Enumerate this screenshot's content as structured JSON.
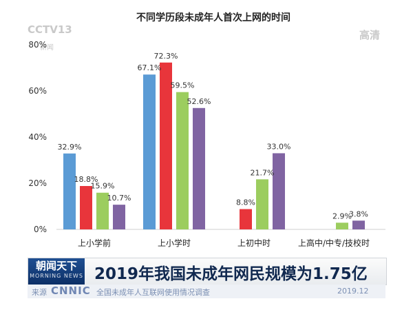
{
  "chart_data": {
    "type": "bar",
    "title": "不同学历段未成年人首次上网的时间",
    "categories": [
      "上小学前",
      "上小学时",
      "上初中时",
      "上高中/中专/技校时"
    ],
    "series": [
      {
        "color": "#5b9bd5",
        "values": [
          32.9,
          67.1,
          null,
          null
        ]
      },
      {
        "color": "#e8353b",
        "values": [
          18.8,
          72.3,
          8.8,
          null
        ]
      },
      {
        "color": "#9ccd5f",
        "values": [
          15.9,
          59.5,
          21.7,
          2.9
        ]
      },
      {
        "color": "#8064a2",
        "values": [
          10.7,
          52.6,
          33.0,
          3.8
        ]
      }
    ],
    "value_labels": [
      [
        "32.9%",
        "67.1%",
        "",
        ""
      ],
      [
        "18.8%",
        "72.3%",
        "8.8%",
        ""
      ],
      [
        "15.9%",
        "59.5%",
        "21.7%",
        "2.9%"
      ],
      [
        "10.7%",
        "52.6%",
        "33.0%",
        "3.8%"
      ]
    ],
    "yticks": [
      "0%",
      "20%",
      "40%",
      "60%",
      "80%"
    ],
    "ylim": [
      0,
      80
    ],
    "grid": false,
    "legend": "none"
  },
  "watermark": {
    "logo": "CCTV13",
    "sub": "新闻",
    "hd": "高清"
  },
  "ticker": {
    "logo_main": "朝闻天下",
    "logo_sub": "MORNING NEWS",
    "headline": "2019年我国未成年网民规模为1.75亿",
    "source_label": "来源",
    "source_logo": "CNNIC",
    "source_title": "全国未成年人互联网使用情况调查",
    "date": "2019.12"
  }
}
